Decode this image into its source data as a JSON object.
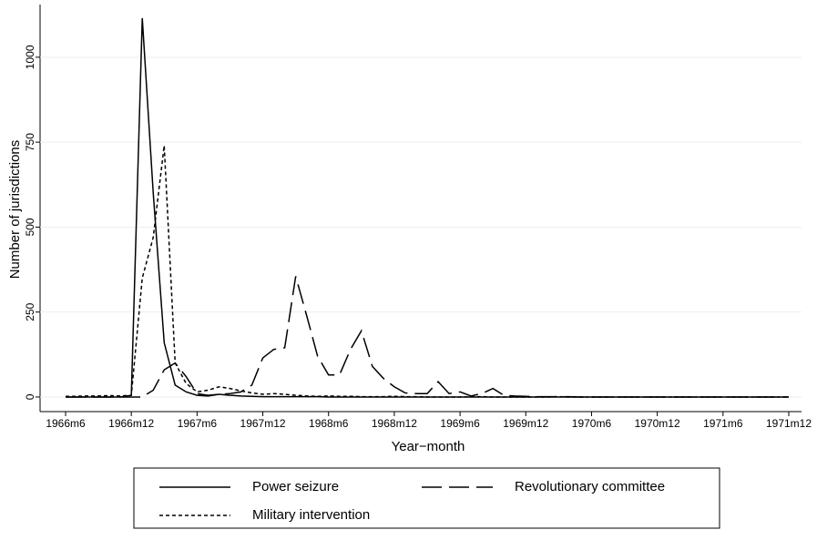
{
  "chart_data": {
    "type": "line",
    "x_label": "Year−month",
    "y_label": "Number of jurisdictions",
    "categories": [
      "1966m6",
      null,
      null,
      null,
      null,
      null,
      "1966m12",
      null,
      null,
      null,
      null,
      null,
      "1967m6",
      null,
      null,
      null,
      null,
      null,
      "1967m12",
      null,
      null,
      null,
      null,
      null,
      "1968m6",
      null,
      null,
      null,
      null,
      null,
      "1968m12",
      null,
      null,
      null,
      null,
      null,
      "1969m6",
      null,
      null,
      null,
      null,
      null,
      "1969m12",
      null,
      null,
      null,
      null,
      null,
      "1970m6",
      null,
      null,
      null,
      null,
      null,
      "1970m12",
      null,
      null,
      null,
      null,
      null,
      "1971m6",
      null,
      null,
      null,
      null,
      null,
      "1971m12"
    ],
    "series": [
      {
        "name": "Power seizure",
        "color": "#000000",
        "dash": "solid",
        "values": [
          0,
          0,
          0,
          0,
          0,
          0,
          5,
          1115,
          600,
          160,
          35,
          15,
          5,
          3,
          8,
          5,
          3,
          2,
          1,
          1,
          1,
          1,
          1,
          1,
          0,
          0,
          0,
          0,
          0,
          0,
          0,
          0,
          0,
          0,
          0,
          0,
          0,
          0,
          0,
          0,
          0,
          0,
          0,
          0,
          0,
          0,
          0,
          0,
          0,
          0,
          0,
          0,
          0,
          0,
          0,
          0,
          0,
          0,
          0,
          0,
          0,
          0,
          0,
          0,
          0,
          0,
          0
        ]
      },
      {
        "name": "Revolutionary committee",
        "color": "#000000",
        "dash": "long",
        "values": [
          0,
          0,
          0,
          0,
          0,
          0,
          0,
          0,
          20,
          80,
          100,
          60,
          10,
          5,
          8,
          10,
          15,
          35,
          115,
          140,
          145,
          355,
          240,
          120,
          65,
          65,
          140,
          195,
          90,
          55,
          30,
          12,
          10,
          10,
          45,
          10,
          15,
          3,
          10,
          25,
          5,
          3,
          2,
          1,
          1,
          1,
          1,
          0,
          0,
          0,
          0,
          0,
          0,
          0,
          0,
          0,
          0,
          0,
          0,
          0,
          0,
          0,
          0,
          0,
          0,
          0,
          0
        ]
      },
      {
        "name": "Military intervention",
        "color": "#000000",
        "dash": "short",
        "values": [
          2,
          2,
          3,
          3,
          4,
          3,
          5,
          350,
          470,
          740,
          100,
          40,
          15,
          20,
          30,
          25,
          18,
          12,
          8,
          10,
          8,
          5,
          3,
          2,
          3,
          2,
          2,
          1,
          1,
          1,
          2,
          1,
          1,
          0,
          0,
          0,
          0,
          1,
          1,
          0,
          0,
          0,
          0,
          0,
          0,
          1,
          0,
          0,
          0,
          0,
          0,
          0,
          0,
          0,
          0,
          0,
          0,
          0,
          0,
          0,
          0,
          0,
          0,
          0,
          0,
          0,
          0
        ]
      }
    ],
    "ylim": [
      -43,
      1155
    ],
    "yticks": [
      0,
      250,
      500,
      750,
      1000
    ],
    "grid": true
  }
}
